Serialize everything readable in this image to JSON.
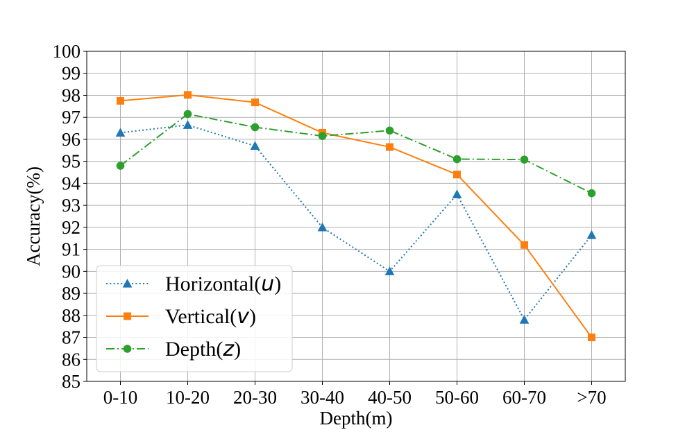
{
  "chart_data": {
    "type": "line",
    "title": "",
    "xlabel": "Depth(m)",
    "ylabel": "Accuracy(%)",
    "categories": [
      "0-10",
      "10-20",
      "20-30",
      "30-40",
      "40-50",
      "50-60",
      "60-70",
      ">70"
    ],
    "ylim": [
      85,
      100
    ],
    "yticks": [
      85,
      86,
      87,
      88,
      89,
      90,
      91,
      92,
      93,
      94,
      95,
      96,
      97,
      98,
      99,
      100
    ],
    "grid": true,
    "legend_position": "bottom-left",
    "series": [
      {
        "name": "Horizontal(u)",
        "label_main": "Horizontal(",
        "label_var": "u",
        "label_end": ")",
        "color": "#1f77b4",
        "marker": "triangle",
        "linestyle": "dotted",
        "values": [
          96.3,
          96.65,
          95.7,
          92.0,
          90.0,
          93.5,
          87.8,
          91.65
        ]
      },
      {
        "name": "Vertical(v)",
        "label_main": "Vertical(",
        "label_var": "v",
        "label_end": ")",
        "color": "#ff7f0e",
        "marker": "square",
        "linestyle": "solid",
        "values": [
          97.75,
          98.02,
          97.68,
          96.3,
          95.65,
          94.4,
          91.2,
          87.0
        ]
      },
      {
        "name": "Depth(z)",
        "label_main": "Depth(",
        "label_var": "z",
        "label_end": ")",
        "color": "#2ca02c",
        "marker": "circle",
        "linestyle": "dashdot",
        "values": [
          94.8,
          97.15,
          96.55,
          96.15,
          96.4,
          95.1,
          95.08,
          93.55
        ]
      }
    ]
  }
}
